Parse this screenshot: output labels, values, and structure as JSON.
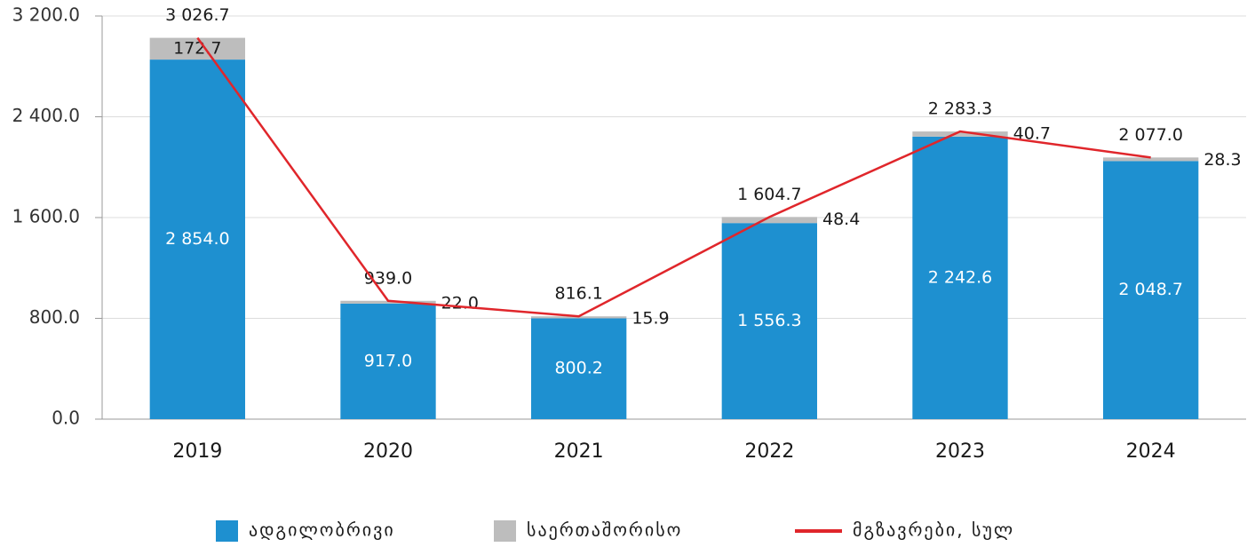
{
  "chart_data": {
    "type": "bar",
    "categories": [
      "2019",
      "2020",
      "2021",
      "2022",
      "2023",
      "2024"
    ],
    "series": [
      {
        "name": "ადგილობრივი",
        "color": "#1e90d0",
        "type": "bar",
        "values": [
          2854.0,
          917.0,
          800.2,
          1556.3,
          2242.6,
          2048.7
        ],
        "value_labels": [
          "2 854.0",
          "917.0",
          "800.2",
          "1 556.3",
          "2 242.6",
          "2 048.7"
        ]
      },
      {
        "name": "საერთაშორისო",
        "color": "#bdbdbd",
        "type": "bar",
        "values": [
          172.7,
          22.0,
          15.9,
          48.4,
          40.7,
          28.3
        ],
        "value_labels": [
          "172.7",
          "22.0",
          "15.9",
          "48.4",
          "40.7",
          "28.3"
        ]
      },
      {
        "name": "მგზავრები, სულ",
        "color": "#e0262b",
        "type": "line",
        "values": [
          3026.7,
          939.0,
          816.1,
          1604.7,
          2283.3,
          2077.0
        ],
        "value_labels": [
          "3 026.7",
          "939.0",
          "816.1",
          "1 604.7",
          "2 283.3",
          "2 077.0"
        ]
      }
    ],
    "stacked": true,
    "ylim": [
      0,
      3200
    ],
    "yticks": [
      {
        "value": 0,
        "label": "0.0"
      },
      {
        "value": 800,
        "label": "800.0"
      },
      {
        "value": 1600,
        "label": "1 600.0"
      },
      {
        "value": 2400,
        "label": "2 400.0"
      },
      {
        "value": 3200,
        "label": "3 200.0"
      }
    ],
    "grid": true,
    "legend": "bottom"
  }
}
